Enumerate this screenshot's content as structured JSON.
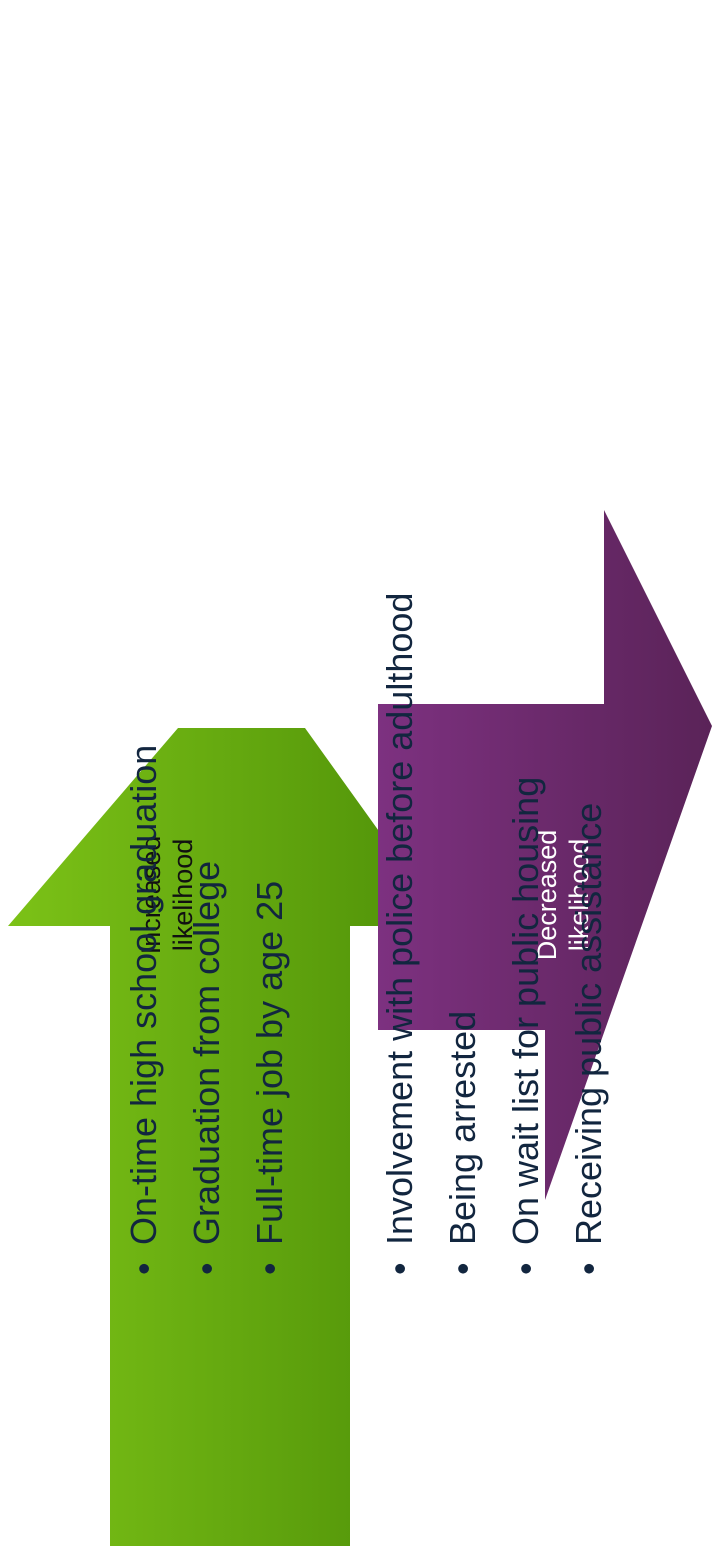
{
  "increase": {
    "arrow_label": [
      "Increased",
      "likelihood"
    ],
    "color_start": "#7cc217",
    "color_end": "#4e9008",
    "items": [
      "On-time high school graduation",
      "Graduation from college",
      "Full-time job by age 25"
    ]
  },
  "decrease": {
    "arrow_label": [
      "Decreased",
      "likelihood"
    ],
    "color_start": "#7d3180",
    "color_end": "#5a2358",
    "items": [
      "Involvement with police before adulthood",
      "Being arrested",
      "On wait list for public housing",
      "Receiving public assistance"
    ]
  }
}
